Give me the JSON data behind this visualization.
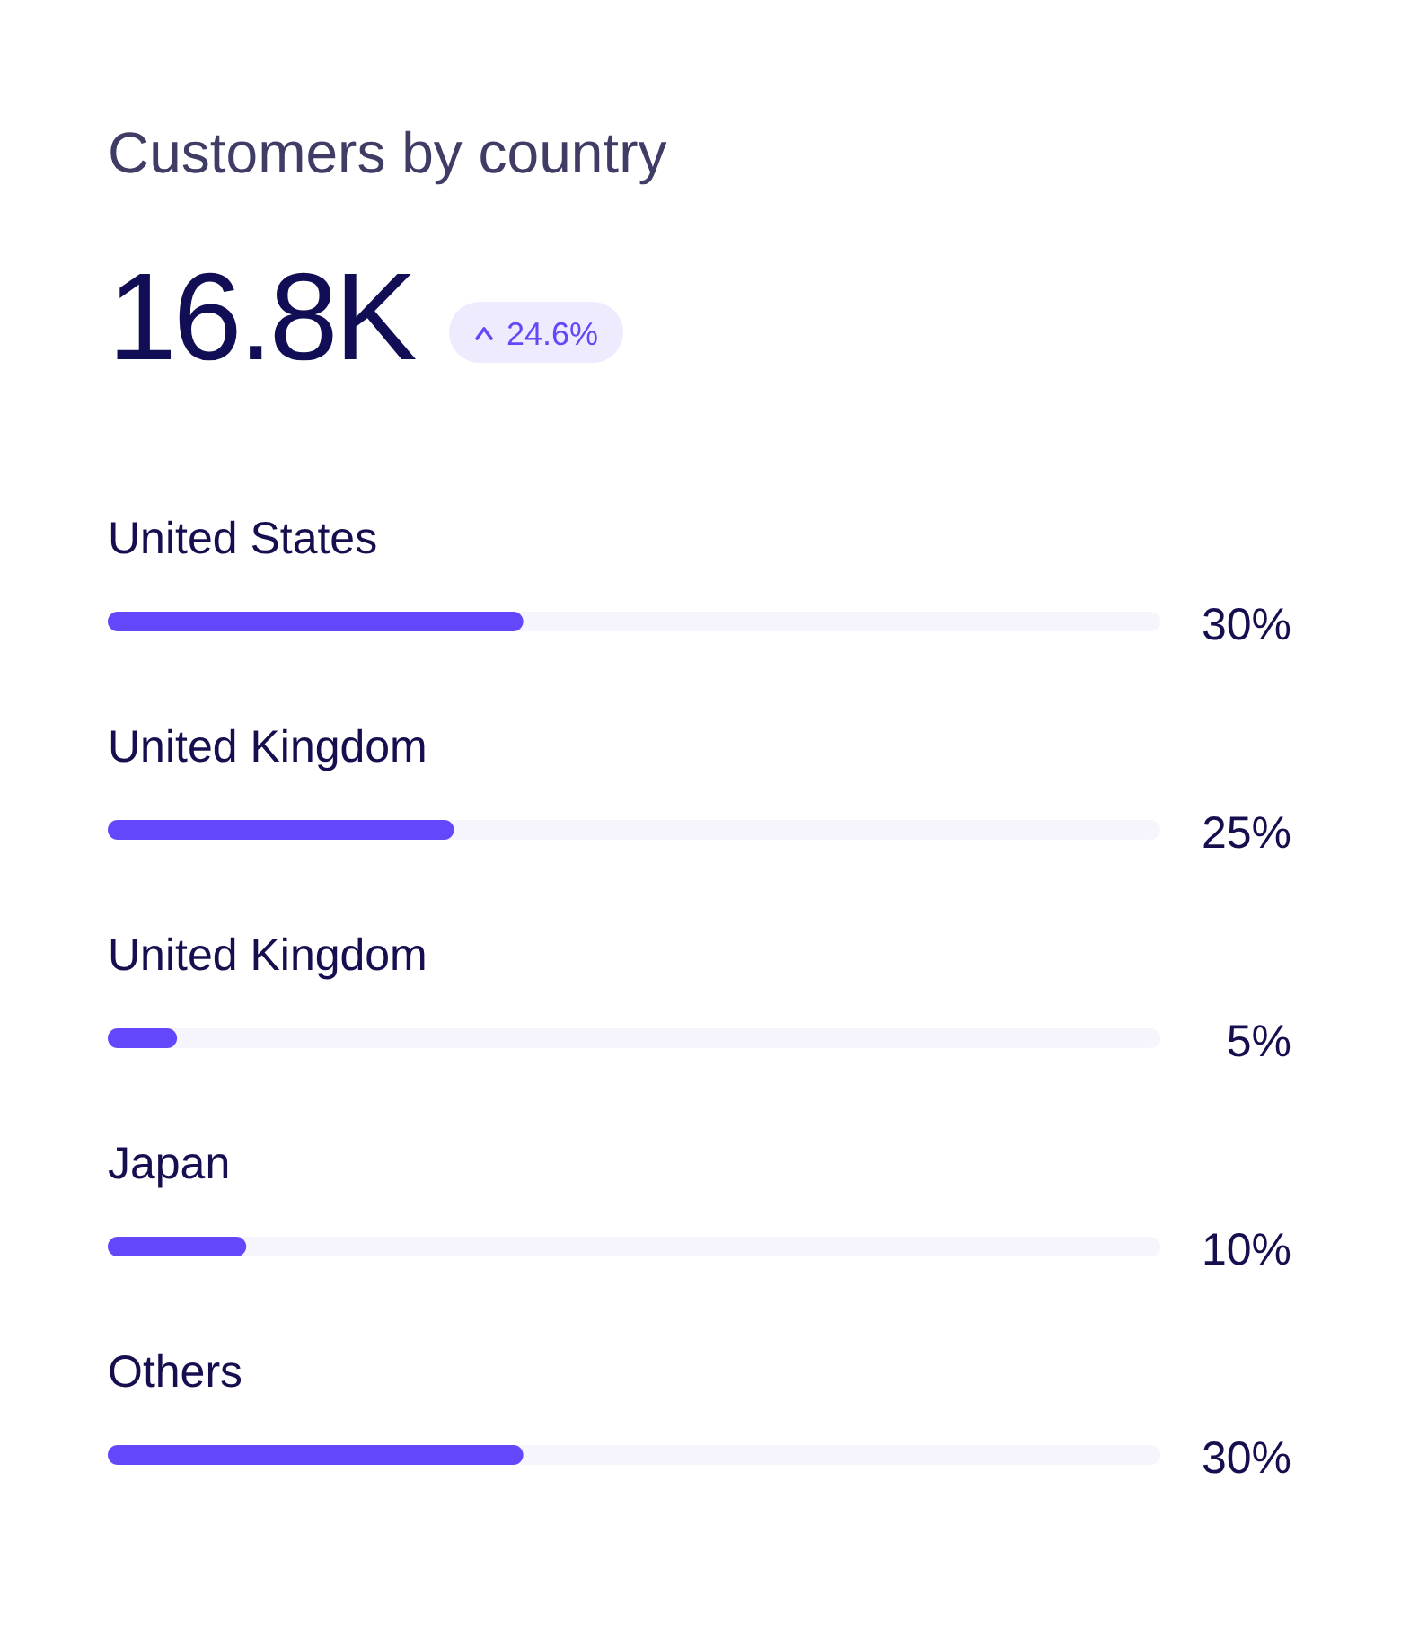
{
  "chart_data": {
    "type": "bar",
    "orientation": "horizontal",
    "title": "Customers by country",
    "subtitle": "16.8K",
    "annotations": [
      "24.6%"
    ],
    "categories": [
      "United States",
      "United Kingdom",
      "United Kingdom",
      "Japan",
      "Others"
    ],
    "values": [
      30,
      25,
      5,
      10,
      30
    ],
    "value_labels": [
      "30%",
      "25%",
      "5%",
      "10%",
      "30%"
    ],
    "color": "#6347fb",
    "xlim": [
      0,
      76
    ],
    "tick_labels": "y"
  }
}
